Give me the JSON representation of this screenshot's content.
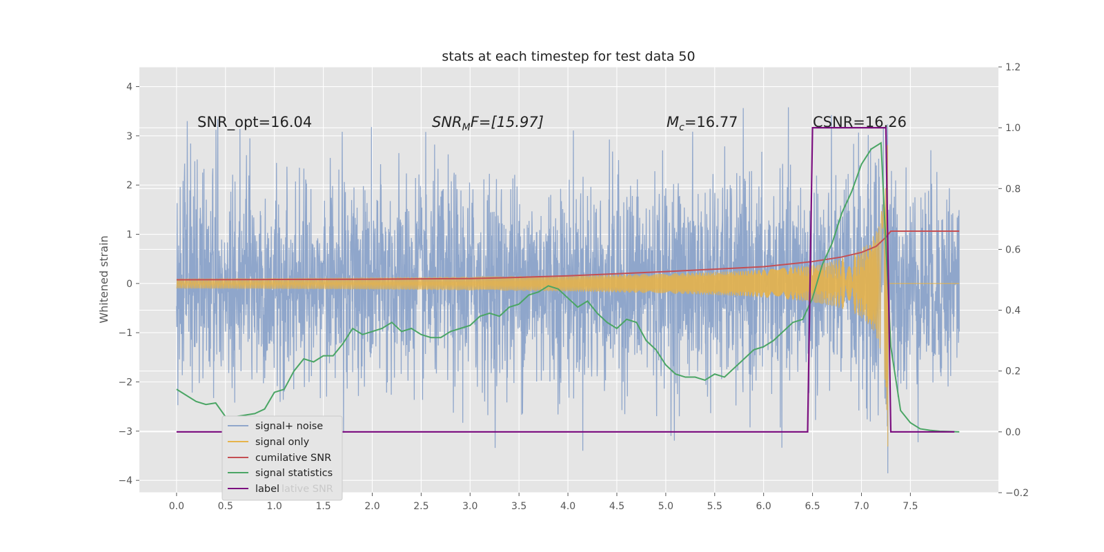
{
  "chart_data": {
    "type": "line",
    "title": "stats at each timestep for test data 50",
    "ylabel": "Whitened strain",
    "xlabel": "",
    "xlim": [
      -0.38,
      8.4
    ],
    "ylim": [
      -4.25,
      4.4
    ],
    "y2lim": [
      -0.2,
      1.2
    ],
    "xticks": [
      "0.0",
      "0.5",
      "1.0",
      "1.5",
      "2.0",
      "2.5",
      "3.0",
      "3.5",
      "4.0",
      "4.5",
      "5.0",
      "5.5",
      "6.0",
      "6.5",
      "7.0",
      "7.5"
    ],
    "yticks": [
      "4",
      "3",
      "2",
      "1",
      "0",
      "−1",
      "−2",
      "−3",
      "−4"
    ],
    "y2ticks": [
      "1.2",
      "1.0",
      "0.8",
      "0.6",
      "0.4",
      "0.2",
      "0.0",
      "−0.2"
    ],
    "grid": true,
    "legend_position": "lower-left",
    "colors": {
      "noise": "#8fa6cb",
      "signal": "#e6b34a",
      "cumulative": "#c44e52",
      "stats": "#4aa564",
      "label": "#7b0f7f",
      "background": "#e5e5e5",
      "grid": "#ffffff"
    },
    "annotations": {
      "snr_opt": "SNR_opt=16.04",
      "snr_mf_prefix": "SNR",
      "snr_mf_sub": "M",
      "snr_mf_suffix": "F=[15.97]",
      "mc_prefix": "M",
      "mc_sub": "c",
      "mc_suffix": "=16.77",
      "csnr": "CSNR=16.26"
    },
    "series": [
      {
        "name": "signal+ noise",
        "axis": "left",
        "note": "whitened noisy strain, t from 0.0 to 8.0, range approx −3.9 to 4.0"
      },
      {
        "name": "signal only",
        "axis": "left",
        "note": "chirp, amplitude growing to ~3.5 near t=7.27 then zero",
        "merger_time": 7.27,
        "peak_amplitude": 3.5
      },
      {
        "name": "cumilative SNR",
        "axis": "right",
        "x": [
          0.0,
          1.0,
          2.0,
          3.0,
          3.5,
          4.0,
          4.5,
          5.0,
          5.5,
          6.0,
          6.5,
          6.8,
          7.0,
          7.15,
          7.25,
          7.3,
          8.0
        ],
        "values": [
          0.5,
          0.501,
          0.502,
          0.504,
          0.508,
          0.513,
          0.52,
          0.527,
          0.535,
          0.543,
          0.56,
          0.575,
          0.59,
          0.61,
          0.64,
          0.66,
          0.66
        ]
      },
      {
        "name": "signal statistics",
        "axis": "right",
        "x": [
          0.0,
          0.1,
          0.2,
          0.3,
          0.4,
          0.5,
          0.6,
          0.7,
          0.8,
          0.9,
          1.0,
          1.1,
          1.2,
          1.3,
          1.4,
          1.5,
          1.6,
          1.7,
          1.8,
          1.9,
          2.0,
          2.1,
          2.2,
          2.3,
          2.4,
          2.5,
          2.6,
          2.7,
          2.8,
          2.9,
          3.0,
          3.1,
          3.2,
          3.3,
          3.4,
          3.5,
          3.6,
          3.7,
          3.8,
          3.9,
          4.0,
          4.1,
          4.2,
          4.3,
          4.4,
          4.5,
          4.6,
          4.7,
          4.8,
          4.9,
          5.0,
          5.1,
          5.2,
          5.3,
          5.4,
          5.5,
          5.6,
          5.7,
          5.8,
          5.9,
          6.0,
          6.1,
          6.2,
          6.3,
          6.4,
          6.5,
          6.6,
          6.7,
          6.8,
          6.9,
          7.0,
          7.1,
          7.2,
          7.3,
          7.4,
          7.5,
          7.6,
          7.7,
          7.8,
          7.9,
          8.0
        ],
        "values": [
          0.14,
          0.12,
          0.1,
          0.09,
          0.095,
          0.05,
          0.05,
          0.055,
          0.06,
          0.075,
          0.13,
          0.14,
          0.2,
          0.24,
          0.23,
          0.25,
          0.25,
          0.29,
          0.34,
          0.32,
          0.33,
          0.34,
          0.36,
          0.33,
          0.34,
          0.32,
          0.31,
          0.31,
          0.33,
          0.34,
          0.35,
          0.38,
          0.39,
          0.38,
          0.41,
          0.42,
          0.45,
          0.46,
          0.48,
          0.47,
          0.44,
          0.41,
          0.43,
          0.39,
          0.36,
          0.34,
          0.37,
          0.36,
          0.3,
          0.27,
          0.22,
          0.19,
          0.18,
          0.18,
          0.17,
          0.19,
          0.18,
          0.21,
          0.24,
          0.27,
          0.28,
          0.3,
          0.33,
          0.36,
          0.37,
          0.44,
          0.55,
          0.62,
          0.72,
          0.79,
          0.88,
          0.93,
          0.95,
          0.28,
          0.07,
          0.03,
          0.01,
          0.005,
          0.002,
          0.001,
          0.0
        ]
      },
      {
        "name": "label",
        "axis": "right",
        "x": [
          0.0,
          6.45,
          6.5,
          7.25,
          7.3,
          7.95
        ],
        "values": [
          0.0,
          0.0,
          1.0,
          1.0,
          0.0,
          0.0
        ]
      }
    ]
  },
  "legend": {
    "items": [
      "signal+ noise",
      "signal only",
      "cumilative SNR",
      "signal statistics",
      "label"
    ],
    "ghost_text": "lative SNR"
  }
}
